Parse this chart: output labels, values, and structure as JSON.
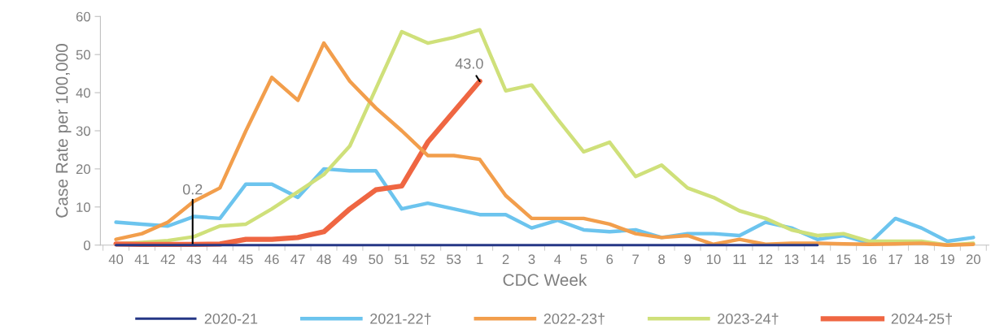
{
  "chart_data": {
    "type": "line",
    "xlabel": "CDC Week",
    "ylabel": "Case Rate per 100,000",
    "categories": [
      "40",
      "41",
      "42",
      "43",
      "44",
      "45",
      "46",
      "47",
      "48",
      "49",
      "50",
      "51",
      "52",
      "53",
      "1",
      "2",
      "3",
      "4",
      "5",
      "6",
      "7",
      "8",
      "9",
      "10",
      "11",
      "12",
      "13",
      "14",
      "15",
      "16",
      "17",
      "18",
      "19",
      "20"
    ],
    "ylim": [
      0,
      60
    ],
    "yticks": [
      0,
      10,
      20,
      30,
      40,
      50,
      60
    ],
    "grid": false,
    "legend": "bottom",
    "marker": "none",
    "line_style": "solid",
    "series": [
      {
        "name": "2020-21",
        "color": "#253786",
        "values": [
          0,
          0,
          0,
          0,
          0,
          0,
          0,
          0,
          0,
          0,
          0,
          0,
          0,
          0,
          0,
          0,
          0,
          0,
          0,
          0,
          0,
          0,
          0,
          0,
          0,
          0,
          0,
          0,
          null,
          null,
          null,
          null,
          null,
          null
        ]
      },
      {
        "name": "2021-22†",
        "color": "#6cc4ee",
        "values": [
          6,
          5.5,
          5,
          7.5,
          7,
          16,
          16,
          12.5,
          20,
          19.5,
          19.5,
          9.5,
          11,
          9.5,
          8,
          8,
          4.5,
          6.5,
          4,
          3.5,
          4,
          2,
          3,
          3,
          2.5,
          6,
          4.5,
          1.5,
          2.5,
          0.5,
          7,
          4.5,
          1,
          2
        ]
      },
      {
        "name": "2022-23†",
        "color": "#f29e4c",
        "values": [
          1.5,
          3,
          6,
          11.5,
          15,
          30,
          44,
          38,
          53,
          43,
          36,
          30,
          23.5,
          23.5,
          22.5,
          13,
          7,
          7,
          7,
          5.5,
          3,
          2,
          2.5,
          0.2,
          1.5,
          0.2,
          0.5,
          0.5,
          0.3,
          0.2,
          0.3,
          0.5,
          0,
          0.2
        ]
      },
      {
        "name": "2023-24†",
        "color": "#cfe07a",
        "values": [
          0.3,
          0.7,
          1.2,
          2.2,
          5,
          5.5,
          9.5,
          14,
          18.5,
          26,
          41,
          56,
          53,
          54.5,
          56.5,
          40.5,
          42,
          33,
          24.5,
          27,
          18,
          21,
          15,
          12.5,
          9,
          7,
          4,
          2.5,
          3,
          1,
          1,
          1,
          0,
          0.5
        ]
      },
      {
        "name": "2024-25†",
        "color": "#ef6642",
        "values": [
          0.3,
          0.2,
          0.2,
          0.2,
          0.3,
          1.5,
          1.5,
          2,
          3.5,
          9.5,
          14.5,
          15.5,
          27,
          35,
          43,
          null,
          null,
          null,
          null,
          null,
          null,
          null,
          null,
          null,
          null,
          null,
          null,
          null,
          null,
          null,
          null,
          null,
          null,
          null
        ]
      }
    ],
    "annotations": [
      {
        "text": "0.2",
        "x": "43",
        "y": 0.2
      },
      {
        "text": "43.0",
        "x": "1",
        "y": 43
      }
    ]
  }
}
